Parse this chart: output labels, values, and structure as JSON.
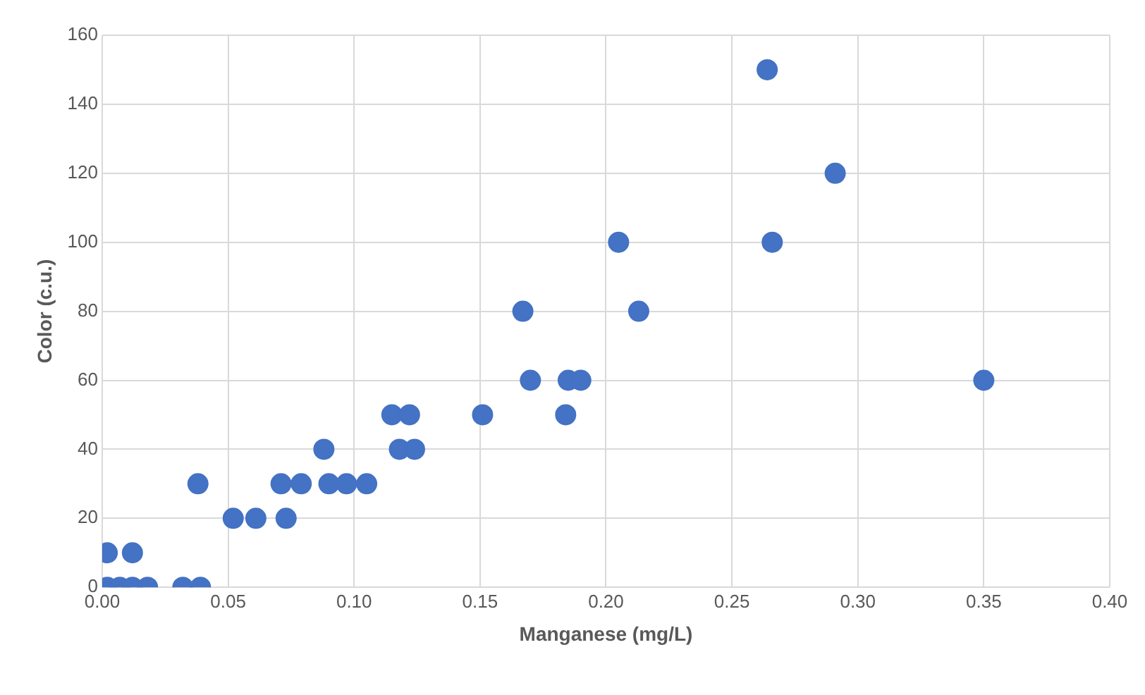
{
  "chart_data": {
    "type": "scatter",
    "xlabel": "Manganese (mg/L)",
    "ylabel": "Color (c.u.)",
    "x": [
      0.264,
      0.291,
      0.205,
      0.266,
      0.167,
      0.213,
      0.17,
      0.185,
      0.19,
      0.35,
      0.151,
      0.184,
      0.115,
      0.122,
      0.088,
      0.118,
      0.124,
      0.038,
      0.071,
      0.079,
      0.09,
      0.097,
      0.105,
      0.052,
      0.061,
      0.073,
      0.002,
      0.012,
      0.002,
      0.007,
      0.012,
      0.018,
      0.032,
      0.039
    ],
    "values": [
      150,
      120,
      100,
      100,
      80,
      80,
      60,
      60,
      60,
      60,
      50,
      50,
      50,
      50,
      40,
      40,
      40,
      30,
      30,
      30,
      30,
      30,
      30,
      20,
      20,
      20,
      10,
      10,
      0,
      0,
      0,
      0,
      0,
      0
    ],
    "color": "#4472c4",
    "marker": "circle",
    "grid": true,
    "legend": false,
    "xlim": [
      0,
      0.4
    ],
    "xticks": [
      {
        "value": 0,
        "label": "0.00"
      },
      {
        "value": 0.05,
        "label": "0.05"
      },
      {
        "value": 0.1,
        "label": "0.10"
      },
      {
        "value": 0.15,
        "label": "0.15"
      },
      {
        "value": 0.2,
        "label": "0.20"
      },
      {
        "value": 0.25,
        "label": "0.25"
      },
      {
        "value": 0.3,
        "label": "0.30"
      },
      {
        "value": 0.35,
        "label": "0.35"
      },
      {
        "value": 0.4,
        "label": "0.40"
      }
    ],
    "ylim": [
      0,
      160
    ],
    "yticks": [
      0,
      20,
      40,
      60,
      80,
      100,
      120,
      140,
      160
    ]
  }
}
